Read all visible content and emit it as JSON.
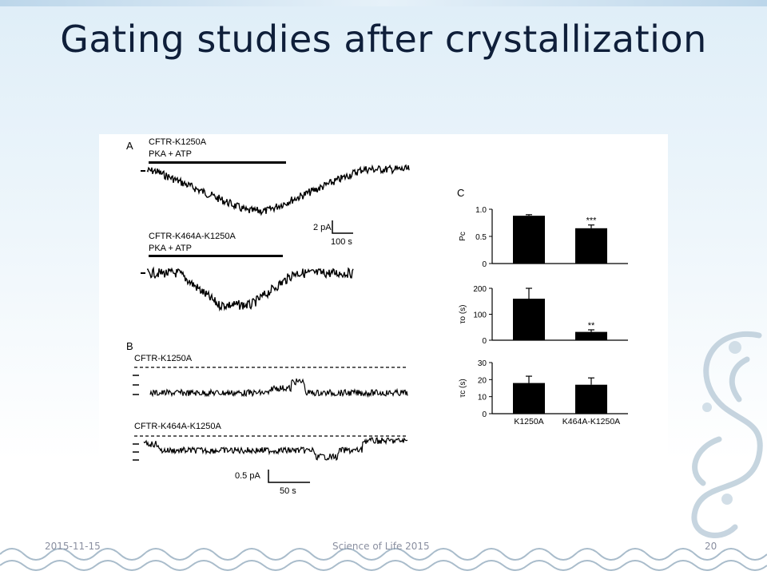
{
  "slide": {
    "title": "Gating studies after crystallization",
    "footer_date": "2015-11-15",
    "footer_center": "Science of Life 2015",
    "footer_page": "20"
  },
  "figure": {
    "panelA": {
      "label": "A",
      "trace1_name": "CFTR-K1250A",
      "trace1_treatment": "PKA + ATP",
      "trace2_name": "CFTR-K464A-K1250A",
      "trace2_treatment": "PKA + ATP",
      "scale_y": "2 pA",
      "scale_x": "100 s"
    },
    "panelB": {
      "label": "B",
      "trace1_name": "CFTR-K1250A",
      "trace2_name": "CFTR-K464A-K1250A",
      "scale_y": "0.5 pA",
      "scale_x": "50 s"
    }
  },
  "chart_data": [
    {
      "type": "bar",
      "panel": "C",
      "ylabel": "Pc",
      "categories": [
        "K1250A",
        "K464A-K1250A"
      ],
      "values": [
        0.88,
        0.65
      ],
      "errors": [
        0.02,
        0.06
      ],
      "significance": [
        "",
        "***"
      ],
      "ylim": [
        0,
        1.0
      ],
      "yticks": [
        "0",
        "0.5",
        "1.0"
      ]
    },
    {
      "type": "bar",
      "ylabel": "τo (s)",
      "categories": [
        "K1250A",
        "K464A-K1250A"
      ],
      "values": [
        160,
        32
      ],
      "errors": [
        40,
        8
      ],
      "significance": [
        "",
        "**"
      ],
      "ylim": [
        0,
        200
      ],
      "yticks": [
        "0",
        "100",
        "200"
      ]
    },
    {
      "type": "bar",
      "ylabel": "τc (s)",
      "categories": [
        "K1250A",
        "K464A-K1250A"
      ],
      "values": [
        18,
        17
      ],
      "errors": [
        4,
        4
      ],
      "significance": [
        "",
        ""
      ],
      "ylim": [
        0,
        30
      ],
      "yticks": [
        "0",
        "10",
        "20",
        "30"
      ]
    }
  ],
  "colors": {
    "title": "#0f1f3a",
    "bar": "#000000",
    "background_top": "#dfeef8"
  }
}
